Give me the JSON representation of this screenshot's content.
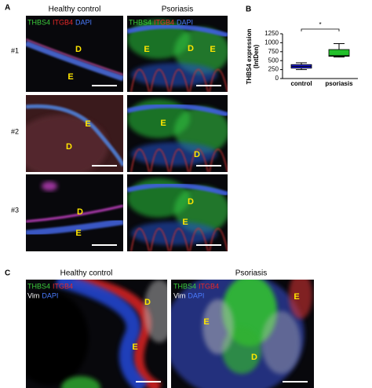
{
  "panel_a": {
    "label": "A",
    "columns": [
      "Healthy control",
      "Psoriasis"
    ],
    "rows": [
      "#1",
      "#2",
      "#3"
    ],
    "channels": [
      "THBS4",
      "ITGB4",
      "DAPI"
    ],
    "images": [
      [
        "D",
        "E"
      ],
      [
        "E",
        "D",
        "E"
      ],
      [
        "E",
        "D"
      ],
      [
        "E",
        "D"
      ],
      [
        "D",
        "E"
      ],
      [
        "D",
        "E"
      ]
    ]
  },
  "chart_data": {
    "type": "box",
    "label": "B",
    "ylabel": [
      "THBS4 expression",
      "(IntDen)"
    ],
    "categories": [
      "control",
      "psoriasis"
    ],
    "boxes": [
      {
        "min": 250,
        "q1": 290,
        "median": 340,
        "q3": 390,
        "max": 440,
        "color": "#1f1fd6"
      },
      {
        "min": 600,
        "q1": 620,
        "median": 640,
        "q3": 810,
        "max": 975,
        "color": "#22c02a"
      }
    ],
    "ylim": [
      0,
      1250
    ],
    "yticks": [
      0,
      250,
      500,
      750,
      1000,
      1250
    ],
    "annotation": "*"
  },
  "panel_c": {
    "label": "C",
    "columns": [
      "Healthy control",
      "Psoriasis"
    ],
    "channels": [
      "THBS4",
      "ITGB4",
      "Vim",
      "DAPI"
    ],
    "images": [
      [
        "D",
        "E"
      ],
      [
        "E",
        "D",
        "E"
      ]
    ]
  }
}
